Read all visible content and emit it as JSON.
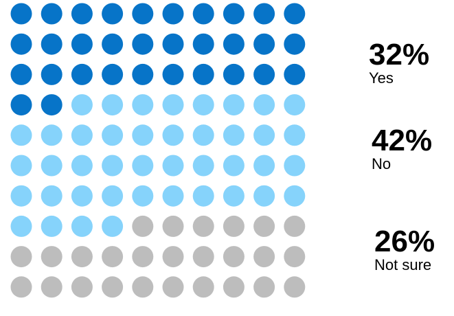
{
  "chart_data": {
    "type": "waffle",
    "grid": {
      "rows": 10,
      "cols": 10
    },
    "categories": [
      {
        "label": "Yes",
        "value": 32,
        "value_text": "32%",
        "color": "#0774c8"
      },
      {
        "label": "No",
        "value": 42,
        "value_text": "42%",
        "color": "#86d3fb"
      },
      {
        "label": "Not sure",
        "value": 26,
        "value_text": "26%",
        "color": "#bdbdbd"
      }
    ],
    "legend_placement": "right"
  }
}
